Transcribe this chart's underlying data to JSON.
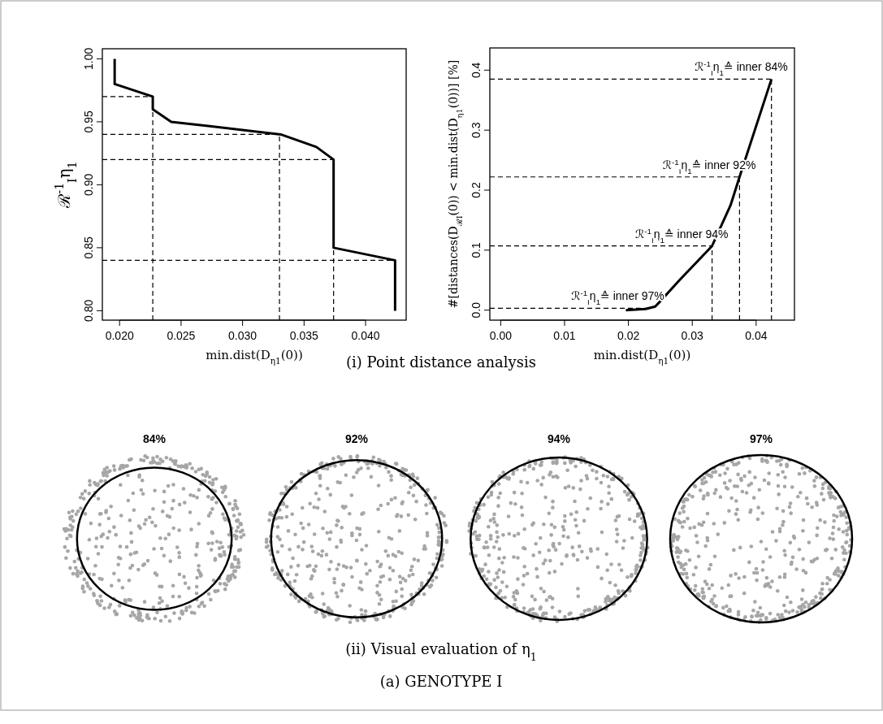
{
  "chart_data": [
    {
      "type": "line",
      "xlabel": "min.dist(D$_{η1}$(0))",
      "ylabel": "ℛ$^{-1}$$_{I}$η$_{1}$",
      "color": "#000000",
      "line_style": "solid",
      "marker": "none",
      "x": [
        0.0196,
        0.0196,
        0.0227,
        0.0227,
        0.0242,
        0.0331,
        0.036,
        0.0374,
        0.0374,
        0.0424,
        0.0424
      ],
      "values": [
        1.0,
        0.98,
        0.97,
        0.96,
        0.95,
        0.94,
        0.93,
        0.92,
        0.85,
        0.84,
        0.8
      ],
      "xlim": [
        0.0186,
        0.0433
      ],
      "ylim": [
        0.7925,
        1.008
      ],
      "xticks": [
        {
          "value": 0.02,
          "label": "0.020"
        },
        {
          "value": 0.025,
          "label": "0.025"
        },
        {
          "value": 0.03,
          "label": "0.030"
        },
        {
          "value": 0.035,
          "label": "0.035"
        },
        {
          "value": 0.04,
          "label": "0.040"
        }
      ],
      "yticks": [
        {
          "value": 0.8,
          "label": "0.80"
        },
        {
          "value": 0.85,
          "label": "0.85"
        },
        {
          "value": 0.9,
          "label": "0.90"
        },
        {
          "value": 0.95,
          "label": "0.95"
        },
        {
          "value": 1.0,
          "label": "1.00"
        }
      ],
      "ref_lines": [
        {
          "axis": "y",
          "value": 0.97,
          "line_style": "dashed"
        },
        {
          "axis": "y",
          "value": 0.94,
          "line_style": "dashed"
        },
        {
          "axis": "y",
          "value": 0.92,
          "line_style": "dashed"
        },
        {
          "axis": "y",
          "value": 0.84,
          "line_style": "dashed"
        },
        {
          "axis": "x",
          "value": 0.0227,
          "line_style": "dashed"
        },
        {
          "axis": "x",
          "value": 0.033,
          "line_style": "dashed"
        },
        {
          "axis": "x",
          "value": 0.0374,
          "line_style": "dashed"
        }
      ],
      "annotations": [
        "(i) Point distance analysis"
      ]
    },
    {
      "type": "line",
      "xlabel": "min.dist(D$_{η1}$(0))",
      "ylabel": "#[distances(D$_{ℛI}$(0)) < min.dist(D$_{η1}$(0))] [%]",
      "color": "#000000",
      "line_style": "solid",
      "marker": "none",
      "x": [
        0.0196,
        0.0227,
        0.0242,
        0.025,
        0.028,
        0.0331,
        0.036,
        0.0374,
        0.0424
      ],
      "values": [
        0.0,
        0.002,
        0.006,
        0.015,
        0.05,
        0.107,
        0.175,
        0.222,
        0.385
      ],
      "xlim": [
        -0.0017,
        0.046
      ],
      "ylim": [
        -0.0167,
        0.437
      ],
      "xticks": [
        {
          "value": 0,
          "label": "0.00"
        },
        {
          "value": 0.01,
          "label": "0.01"
        },
        {
          "value": 0.02,
          "label": "0.02"
        },
        {
          "value": 0.03,
          "label": "0.03"
        },
        {
          "value": 0.04,
          "label": "0.04"
        }
      ],
      "yticks": [
        {
          "value": 0,
          "label": "0.0"
        },
        {
          "value": 0.1,
          "label": "0.1"
        },
        {
          "value": 0.2,
          "label": "0.2"
        },
        {
          "value": 0.3,
          "label": "0.3"
        },
        {
          "value": 0.4,
          "label": "0.4"
        }
      ],
      "ref_lines": [
        {
          "axis": "y",
          "value": 0.385,
          "line_style": "dashed",
          "label": "ℛ$^{-1}$$_{I}$η$_{1}$≙ inner 84%"
        },
        {
          "axis": "y",
          "value": 0.222,
          "line_style": "dashed",
          "label": "ℛ$^{-1}$$_{I}$η$_{1}$≙ inner 92%"
        },
        {
          "axis": "y",
          "value": 0.107,
          "line_style": "dashed",
          "label": "ℛ$^{-1}$$_{I}$η$_{1}$≙ inner 94%"
        },
        {
          "axis": "y",
          "value": 0.003,
          "line_style": "dashed",
          "label": "ℛ$^{-1}$$_{I}$η$_{1}$≙ inner 97%"
        },
        {
          "axis": "x",
          "value": 0.0331,
          "line_style": "dashed"
        },
        {
          "axis": "x",
          "value": 0.0374,
          "line_style": "dashed"
        },
        {
          "axis": "x",
          "value": 0.0424,
          "line_style": "dashed"
        }
      ]
    },
    {
      "type": "other",
      "title": "84%",
      "annotations": [
        "(ii) Visual evaluation of η$_{1}$",
        "(a) GENOTYPE I"
      ]
    },
    {
      "type": "other",
      "title": "92%"
    },
    {
      "type": "other",
      "title": "94%"
    },
    {
      "type": "other",
      "title": "97%"
    }
  ]
}
